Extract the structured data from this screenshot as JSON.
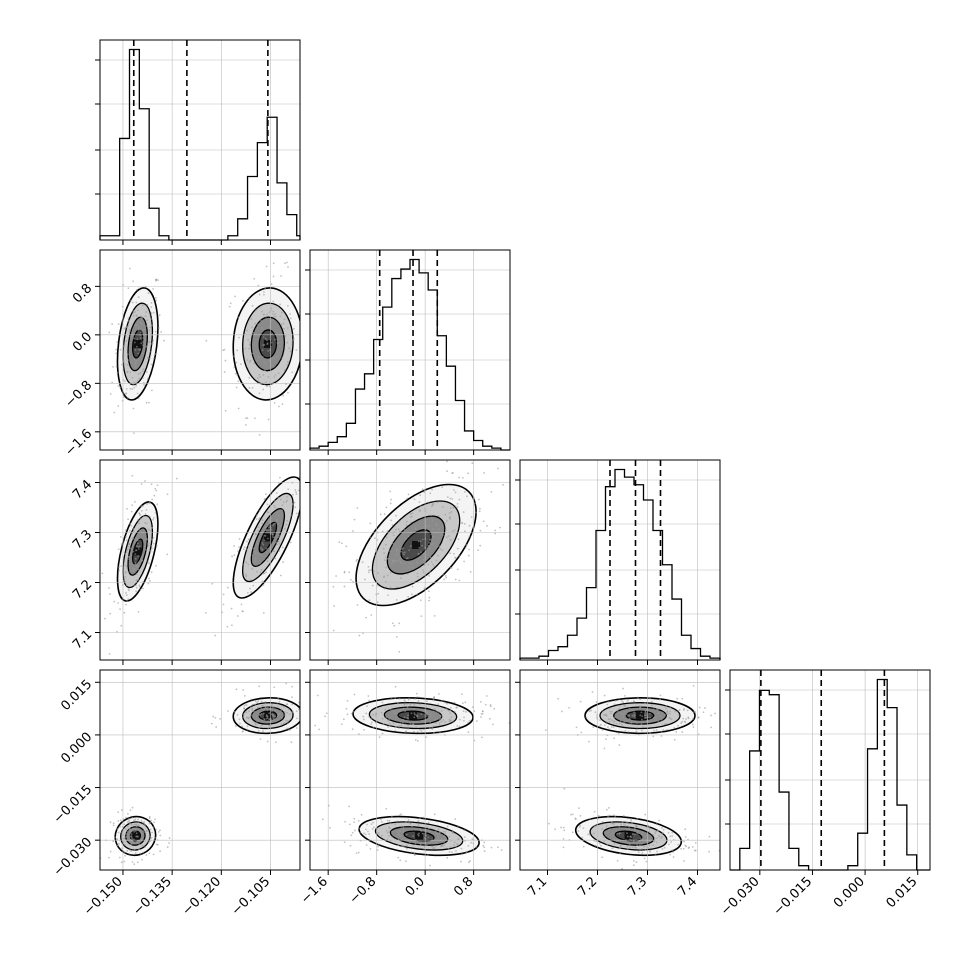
{
  "chart_data": {
    "type": "corner",
    "description": "Corner plot of 4 parameters: 1D marginal histograms on the diagonal (with dashed quantile lines), 2D density contours with scatter points off-diagonal",
    "grid": true,
    "colors": {
      "line": "#000000",
      "grid": "#bbbbbb",
      "scatter": "#999999"
    },
    "parameters": [
      {
        "index": 0,
        "label": "",
        "range": [
          -0.157,
          -0.096
        ],
        "ticks": [
          "−0.150",
          "−0.135",
          "−0.120",
          "−0.105"
        ],
        "tick_values": [
          -0.15,
          -0.135,
          -0.12,
          -0.105
        ],
        "quantiles": [
          -0.1467,
          -0.1305,
          -0.1058
        ],
        "histogram": {
          "bin_edges": [
            -0.157,
            -0.154,
            -0.151,
            -0.148,
            -0.145,
            -0.142,
            -0.139,
            -0.136,
            -0.133,
            -0.13,
            -0.127,
            -0.124,
            -0.121,
            -0.118,
            -0.115,
            -0.112,
            -0.109,
            -0.106,
            -0.103,
            -0.1,
            -0.097,
            -0.096
          ],
          "counts": [
            0.02,
            0.02,
            0.48,
            0.9,
            0.62,
            0.15,
            0.02,
            0,
            0,
            0,
            0,
            0,
            0,
            0.02,
            0.1,
            0.3,
            0.46,
            0.58,
            0.27,
            0.12,
            0.02
          ]
        }
      },
      {
        "index": 1,
        "label": "",
        "range": [
          -1.9,
          1.4
        ],
        "ticks": [
          "−1.6",
          "−0.8",
          "0.0",
          "0.8"
        ],
        "tick_values": [
          -1.6,
          -0.8,
          0.0,
          0.8
        ],
        "quantiles": [
          -0.75,
          -0.2,
          0.2
        ],
        "histogram": {
          "bin_edges": [
            -1.9,
            -1.75,
            -1.6,
            -1.45,
            -1.3,
            -1.15,
            -1.0,
            -0.85,
            -0.7,
            -0.55,
            -0.4,
            -0.25,
            -0.1,
            0.05,
            0.2,
            0.35,
            0.5,
            0.65,
            0.8,
            0.95,
            1.1,
            1.25,
            1.4
          ],
          "counts": [
            0.01,
            0.02,
            0.04,
            0.07,
            0.14,
            0.32,
            0.4,
            0.58,
            0.75,
            0.9,
            0.95,
            1.0,
            0.93,
            0.84,
            0.6,
            0.44,
            0.26,
            0.1,
            0.05,
            0.02,
            0.01,
            0.0
          ]
        }
      },
      {
        "index": 2,
        "label": "",
        "range": [
          7.045,
          7.445
        ],
        "ticks": [
          "7.1",
          "7.2",
          "7.3",
          "7.4"
        ],
        "tick_values": [
          7.1,
          7.2,
          7.3,
          7.4
        ],
        "quantiles": [
          7.225,
          7.276,
          7.326
        ],
        "histogram": {
          "bin_edges": [
            7.045,
            7.064,
            7.083,
            7.102,
            7.121,
            7.14,
            7.159,
            7.178,
            7.197,
            7.216,
            7.235,
            7.254,
            7.273,
            7.292,
            7.311,
            7.33,
            7.349,
            7.368,
            7.387,
            7.406,
            7.425,
            7.445
          ],
          "counts": [
            0.01,
            0.01,
            0.02,
            0.05,
            0.07,
            0.13,
            0.22,
            0.38,
            0.68,
            0.91,
            1.0,
            0.96,
            0.92,
            0.84,
            0.68,
            0.5,
            0.32,
            0.13,
            0.06,
            0.02,
            0.01
          ]
        }
      },
      {
        "index": 3,
        "label": "",
        "range": [
          -0.0385,
          0.0185
        ],
        "ticks": [
          "−0.030",
          "−0.015",
          "0.000",
          "0.015"
        ],
        "tick_values": [
          -0.03,
          -0.015,
          0.0,
          0.015
        ],
        "quantiles": [
          -0.0297,
          -0.0125,
          0.0055
        ],
        "histogram": {
          "bin_edges": [
            -0.0385,
            -0.0357,
            -0.0329,
            -0.0301,
            -0.0273,
            -0.0245,
            -0.0217,
            -0.0189,
            -0.0161,
            -0.0133,
            -0.0105,
            -0.0077,
            -0.0049,
            -0.0021,
            0.0007,
            0.0035,
            0.0063,
            0.0091,
            0.0119,
            0.0147,
            0.0175,
            0.0185
          ],
          "counts": [
            0.0,
            0.1,
            0.55,
            0.83,
            0.81,
            0.36,
            0.1,
            0.02,
            0.0,
            0.0,
            0.0,
            0.0,
            0.02,
            0.17,
            0.56,
            0.88,
            0.75,
            0.3,
            0.07,
            0.0,
            0.0
          ]
        }
      }
    ],
    "pairs": [
      {
        "row": 1,
        "col": 0,
        "blobs": [
          {
            "mx": -0.1455,
            "my": -0.15,
            "sx": 0.0028,
            "sy": 0.42,
            "rho": 0.3,
            "n": 180
          },
          {
            "mx": -0.1058,
            "my": -0.15,
            "sx": 0.0048,
            "sy": 0.42,
            "rho": 0.05,
            "n": 180
          }
        ]
      },
      {
        "row": 2,
        "col": 0,
        "blobs": [
          {
            "mx": -0.1455,
            "my": 7.262,
            "sx": 0.0028,
            "sy": 0.045,
            "rho": 0.55,
            "n": 180
          },
          {
            "mx": -0.1058,
            "my": 7.29,
            "sx": 0.0048,
            "sy": 0.055,
            "rho": 0.75,
            "n": 180
          }
        ]
      },
      {
        "row": 2,
        "col": 1,
        "blobs": [
          {
            "mx": -0.15,
            "my": 7.275,
            "sx": 0.45,
            "sy": 0.055,
            "rho": 0.55,
            "n": 320
          }
        ]
      },
      {
        "row": 3,
        "col": 0,
        "blobs": [
          {
            "mx": -0.1462,
            "my": -0.0288,
            "sx": 0.0028,
            "sy": 0.0025,
            "rho": 0.05,
            "n": 170
          },
          {
            "mx": -0.1058,
            "my": 0.0055,
            "sx": 0.0048,
            "sy": 0.0023,
            "rho": 0.05,
            "n": 170
          }
        ]
      },
      {
        "row": 3,
        "col": 1,
        "blobs": [
          {
            "mx": -0.2,
            "my": 0.0055,
            "sx": 0.45,
            "sy": 0.0023,
            "rho": -0.1,
            "n": 220
          },
          {
            "mx": -0.1,
            "my": -0.0288,
            "sx": 0.45,
            "sy": 0.0025,
            "rho": -0.35,
            "n": 220
          }
        ]
      },
      {
        "row": 3,
        "col": 2,
        "blobs": [
          {
            "mx": 7.285,
            "my": 0.0055,
            "sx": 0.05,
            "sy": 0.0023,
            "rho": 0.0,
            "n": 220
          },
          {
            "mx": 7.262,
            "my": -0.0288,
            "sx": 0.048,
            "sy": 0.0025,
            "rho": -0.3,
            "n": 220
          }
        ]
      }
    ]
  }
}
